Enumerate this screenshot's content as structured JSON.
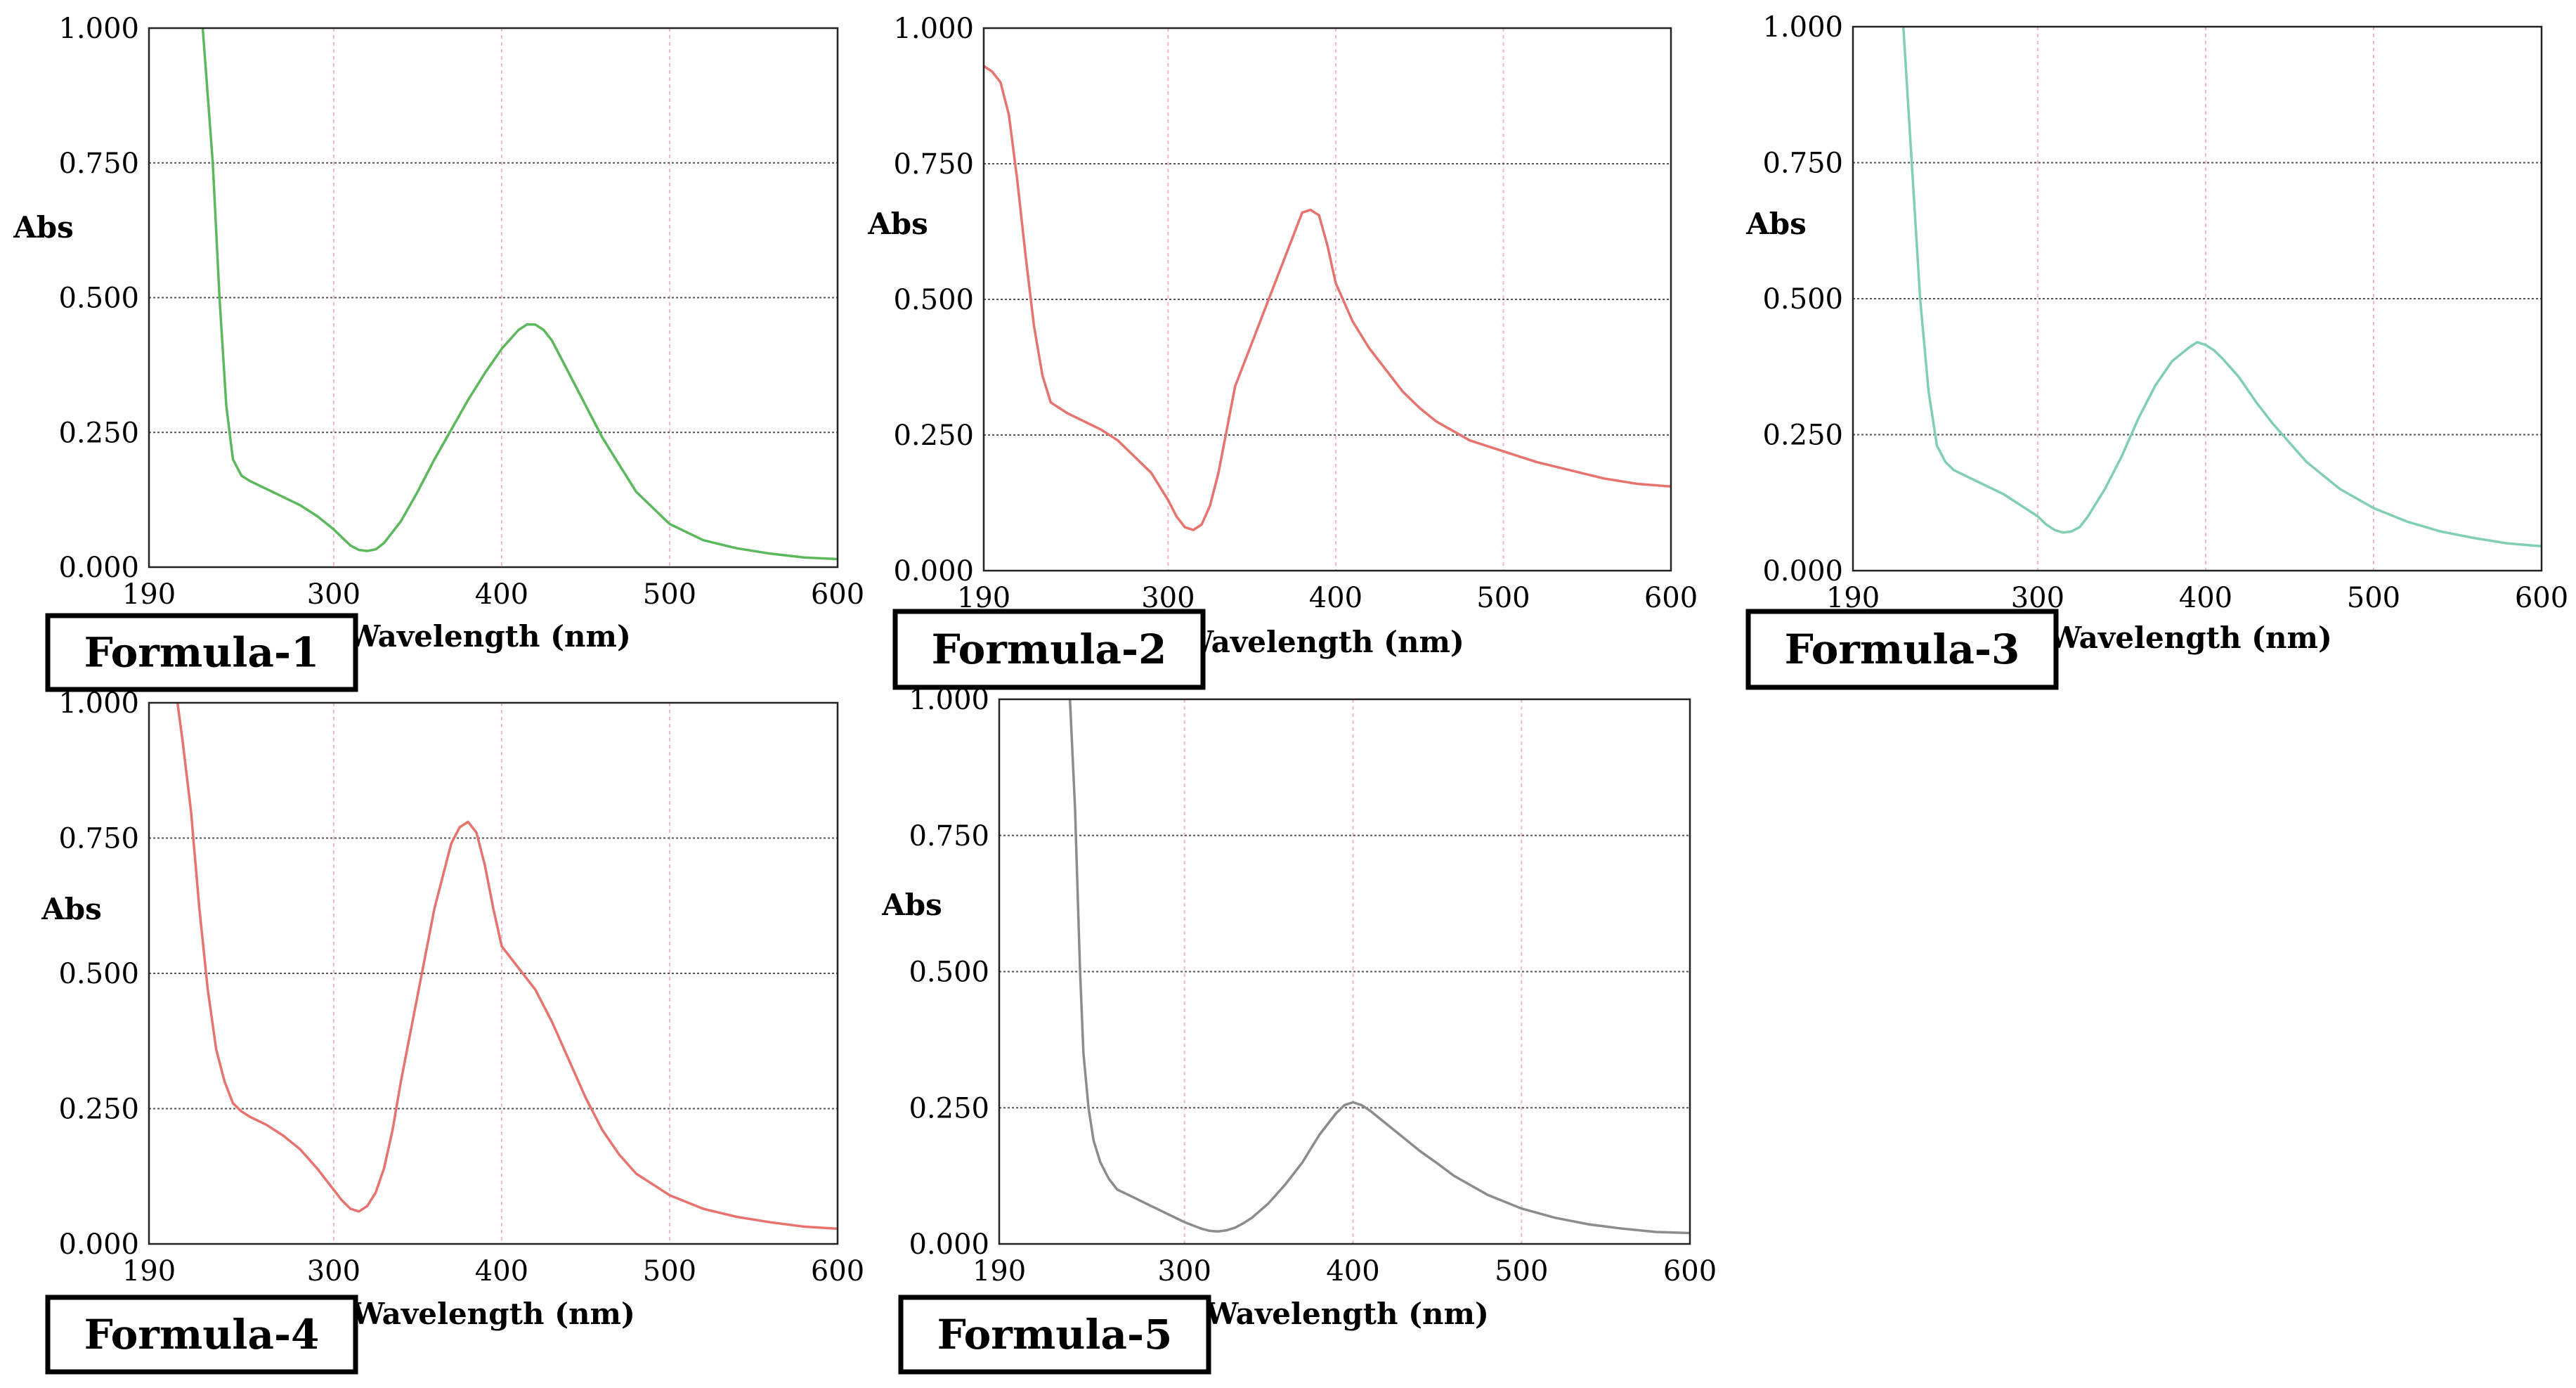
{
  "chart_data": [
    {
      "type": "line",
      "label": "Formula-1",
      "ylabel": "Abs",
      "xlabel": "Wavelength (nm)",
      "xlim": [
        190,
        600
      ],
      "ylim": [
        0,
        1
      ],
      "xticks": [
        "190",
        "300",
        "400",
        "500",
        "600"
      ],
      "yticks": [
        "0.000",
        "0.250",
        "0.500",
        "0.750",
        "1.000"
      ],
      "line_color": "#5cb85c",
      "grid": true,
      "x": [
        222,
        228,
        232,
        236,
        240,
        245,
        250,
        260,
        270,
        280,
        290,
        300,
        305,
        310,
        315,
        320,
        325,
        330,
        340,
        350,
        360,
        370,
        380,
        390,
        400,
        410,
        415,
        420,
        425,
        430,
        440,
        450,
        460,
        470,
        480,
        490,
        500,
        520,
        540,
        560,
        580,
        600
      ],
      "y": [
        1.0,
        0.75,
        0.5,
        0.3,
        0.2,
        0.17,
        0.16,
        0.145,
        0.13,
        0.115,
        0.095,
        0.07,
        0.055,
        0.04,
        0.032,
        0.03,
        0.033,
        0.045,
        0.085,
        0.14,
        0.2,
        0.255,
        0.31,
        0.36,
        0.405,
        0.44,
        0.45,
        0.45,
        0.44,
        0.42,
        0.36,
        0.3,
        0.24,
        0.19,
        0.14,
        0.11,
        0.08,
        0.05,
        0.035,
        0.025,
        0.018,
        0.015
      ]
    },
    {
      "type": "line",
      "label": "Formula-2",
      "ylabel": "Abs",
      "xlabel": "Wavelength (nm)",
      "xlim": [
        190,
        600
      ],
      "ylim": [
        0,
        1
      ],
      "xticks": [
        "190",
        "300",
        "400",
        "500",
        "600"
      ],
      "yticks": [
        "0.000",
        "0.250",
        "0.500",
        "0.750",
        "1.000"
      ],
      "line_color": "#e8736e",
      "grid": true,
      "x": [
        190,
        195,
        200,
        205,
        210,
        215,
        220,
        225,
        230,
        240,
        250,
        260,
        270,
        280,
        290,
        300,
        305,
        310,
        315,
        320,
        325,
        330,
        335,
        340,
        350,
        360,
        370,
        375,
        380,
        385,
        390,
        395,
        400,
        410,
        420,
        430,
        440,
        450,
        460,
        480,
        500,
        520,
        540,
        560,
        580,
        600
      ],
      "y": [
        0.93,
        0.92,
        0.9,
        0.84,
        0.72,
        0.58,
        0.45,
        0.36,
        0.31,
        0.29,
        0.275,
        0.26,
        0.24,
        0.21,
        0.18,
        0.13,
        0.1,
        0.08,
        0.075,
        0.085,
        0.12,
        0.18,
        0.26,
        0.34,
        0.42,
        0.5,
        0.58,
        0.62,
        0.66,
        0.665,
        0.655,
        0.6,
        0.53,
        0.46,
        0.41,
        0.37,
        0.33,
        0.3,
        0.275,
        0.24,
        0.22,
        0.2,
        0.185,
        0.17,
        0.16,
        0.155
      ]
    },
    {
      "type": "line",
      "label": "Formula-3",
      "ylabel": "Abs",
      "xlabel": "Wavelength (nm)",
      "xlim": [
        190,
        600
      ],
      "ylim": [
        0,
        1
      ],
      "xticks": [
        "190",
        "300",
        "400",
        "500",
        "600"
      ],
      "yticks": [
        "0.000",
        "0.250",
        "0.500",
        "0.750",
        "1.000"
      ],
      "line_color": "#7fcfb0",
      "grid": true,
      "x": [
        220,
        225,
        230,
        235,
        240,
        245,
        250,
        260,
        270,
        280,
        290,
        300,
        305,
        310,
        315,
        320,
        325,
        330,
        340,
        350,
        360,
        370,
        380,
        390,
        395,
        400,
        405,
        410,
        420,
        430,
        440,
        450,
        460,
        480,
        500,
        520,
        540,
        560,
        580,
        600
      ],
      "y": [
        1.0,
        0.75,
        0.5,
        0.33,
        0.23,
        0.2,
        0.185,
        0.17,
        0.155,
        0.14,
        0.12,
        0.1,
        0.085,
        0.075,
        0.07,
        0.072,
        0.08,
        0.1,
        0.15,
        0.21,
        0.28,
        0.34,
        0.385,
        0.41,
        0.42,
        0.415,
        0.405,
        0.39,
        0.355,
        0.31,
        0.27,
        0.235,
        0.2,
        0.15,
        0.115,
        0.09,
        0.072,
        0.06,
        0.05,
        0.045
      ]
    },
    {
      "type": "line",
      "label": "Formula-4",
      "ylabel": "Abs",
      "xlabel": "Wavelength (nm)",
      "xlim": [
        190,
        600
      ],
      "ylim": [
        0,
        1
      ],
      "xticks": [
        "190",
        "300",
        "400",
        "500",
        "600"
      ],
      "yticks": [
        "0.000",
        "0.250",
        "0.500",
        "0.750",
        "1.000"
      ],
      "line_color": "#e8736e",
      "grid": true,
      "x": [
        207,
        210,
        215,
        220,
        225,
        230,
        235,
        240,
        245,
        250,
        260,
        270,
        280,
        290,
        300,
        305,
        310,
        315,
        320,
        325,
        330,
        335,
        340,
        350,
        360,
        370,
        375,
        380,
        385,
        390,
        395,
        400,
        410,
        420,
        430,
        440,
        450,
        460,
        470,
        480,
        500,
        520,
        540,
        560,
        580,
        600
      ],
      "y": [
        1.0,
        0.93,
        0.8,
        0.62,
        0.47,
        0.36,
        0.3,
        0.26,
        0.245,
        0.235,
        0.22,
        0.2,
        0.175,
        0.14,
        0.1,
        0.08,
        0.065,
        0.06,
        0.07,
        0.095,
        0.14,
        0.21,
        0.3,
        0.46,
        0.62,
        0.74,
        0.77,
        0.78,
        0.76,
        0.7,
        0.62,
        0.55,
        0.51,
        0.47,
        0.41,
        0.34,
        0.27,
        0.21,
        0.165,
        0.13,
        0.09,
        0.065,
        0.05,
        0.04,
        0.032,
        0.028
      ]
    },
    {
      "type": "line",
      "label": "Formula-5",
      "ylabel": "Abs",
      "xlabel": "Wavelength (nm)",
      "xlim": [
        190,
        600
      ],
      "ylim": [
        0,
        1
      ],
      "xticks": [
        "190",
        "300",
        "400",
        "500",
        "600"
      ],
      "yticks": [
        "0.000",
        "0.250",
        "0.500",
        "0.750",
        "1.000"
      ],
      "line_color": "#8c8c8c",
      "grid": true,
      "x": [
        232,
        235,
        238,
        240,
        243,
        246,
        250,
        255,
        260,
        270,
        280,
        290,
        300,
        310,
        315,
        320,
        325,
        330,
        335,
        340,
        350,
        360,
        370,
        380,
        390,
        395,
        400,
        405,
        410,
        420,
        430,
        440,
        450,
        460,
        480,
        500,
        520,
        540,
        560,
        580,
        600
      ],
      "y": [
        1.0,
        0.8,
        0.5,
        0.35,
        0.25,
        0.19,
        0.15,
        0.12,
        0.1,
        0.085,
        0.07,
        0.055,
        0.04,
        0.028,
        0.024,
        0.023,
        0.025,
        0.03,
        0.038,
        0.048,
        0.075,
        0.11,
        0.15,
        0.2,
        0.24,
        0.255,
        0.26,
        0.255,
        0.245,
        0.22,
        0.195,
        0.17,
        0.148,
        0.125,
        0.09,
        0.065,
        0.048,
        0.036,
        0.028,
        0.022,
        0.02
      ]
    }
  ]
}
